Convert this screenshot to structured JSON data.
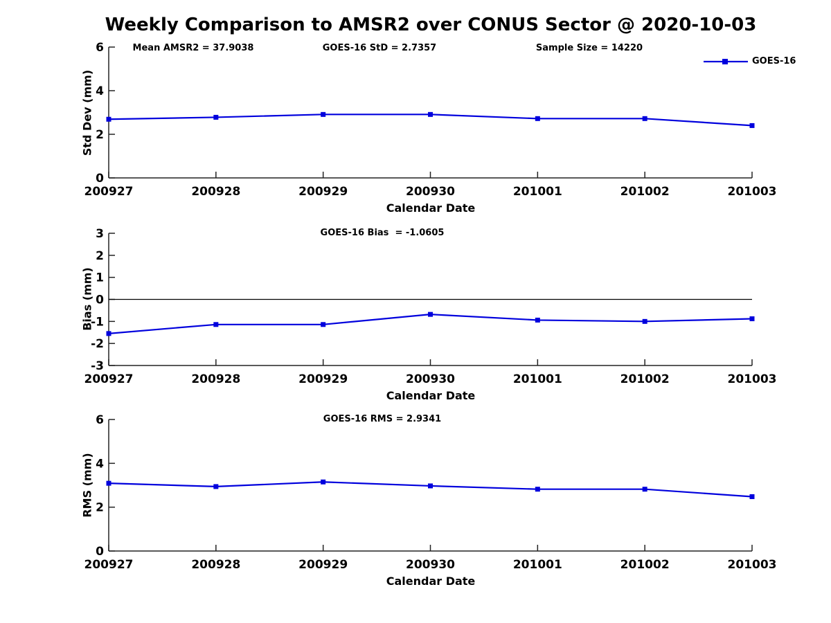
{
  "figure_title": "Weekly Comparison to AMSR2 over CONUS Sector @ 2020-10-03",
  "legend": {
    "label": "GOES-16",
    "position": "top-right"
  },
  "colors": {
    "line": "#0000DD",
    "text": "#000000",
    "axis": "#222222"
  },
  "stats": {
    "mean_amsr2": 37.9038,
    "goes16_std": 2.7357,
    "sample_size": 14220,
    "goes16_bias": -1.0605,
    "goes16_rms": 2.9341
  },
  "chart_data": [
    {
      "type": "line",
      "subplot": "std-dev",
      "annotations": {
        "left": "Mean AMSR2 = 37.9038",
        "center": "GOES-16 StD = 2.7357",
        "right": "Sample Size = 14220"
      },
      "categories": [
        "200927",
        "200928",
        "200929",
        "200930",
        "201001",
        "201002",
        "201003"
      ],
      "series": [
        {
          "name": "GOES-16",
          "values": [
            2.69,
            2.78,
            2.91,
            2.91,
            2.72,
            2.72,
            2.4
          ]
        }
      ],
      "xlabel": "Calendar Date",
      "ylabel": "Std Dev (mm)",
      "ylim": [
        0,
        6
      ],
      "yticks": [
        0,
        2,
        4,
        6
      ],
      "zero_line": false,
      "grid": false,
      "legend_entries": [
        "GOES-16"
      ]
    },
    {
      "type": "line",
      "subplot": "bias",
      "annotations": {
        "center": "GOES-16 Bias  = -1.0605"
      },
      "categories": [
        "200927",
        "200928",
        "200929",
        "200930",
        "201001",
        "201002",
        "201003"
      ],
      "series": [
        {
          "name": "GOES-16",
          "values": [
            -1.55,
            -1.14,
            -1.14,
            -0.68,
            -0.94,
            -1.0,
            -0.88
          ]
        }
      ],
      "xlabel": "Calendar Date",
      "ylabel": "Bias (mm)",
      "ylim": [
        -3,
        3
      ],
      "yticks": [
        -3,
        -2,
        -1,
        0,
        1,
        2,
        3
      ],
      "zero_line": true,
      "grid": false
    },
    {
      "type": "line",
      "subplot": "rms",
      "annotations": {
        "center": "GOES-16 RMS = 2.9341"
      },
      "categories": [
        "200927",
        "200928",
        "200929",
        "200930",
        "201001",
        "201002",
        "201003"
      ],
      "series": [
        {
          "name": "GOES-16",
          "values": [
            3.09,
            2.94,
            3.15,
            2.97,
            2.82,
            2.82,
            2.48
          ]
        }
      ],
      "xlabel": "Calendar Date",
      "ylabel": "RMS (mm)",
      "ylim": [
        0,
        6
      ],
      "yticks": [
        0,
        2,
        4,
        6
      ],
      "zero_line": false,
      "grid": false
    }
  ]
}
